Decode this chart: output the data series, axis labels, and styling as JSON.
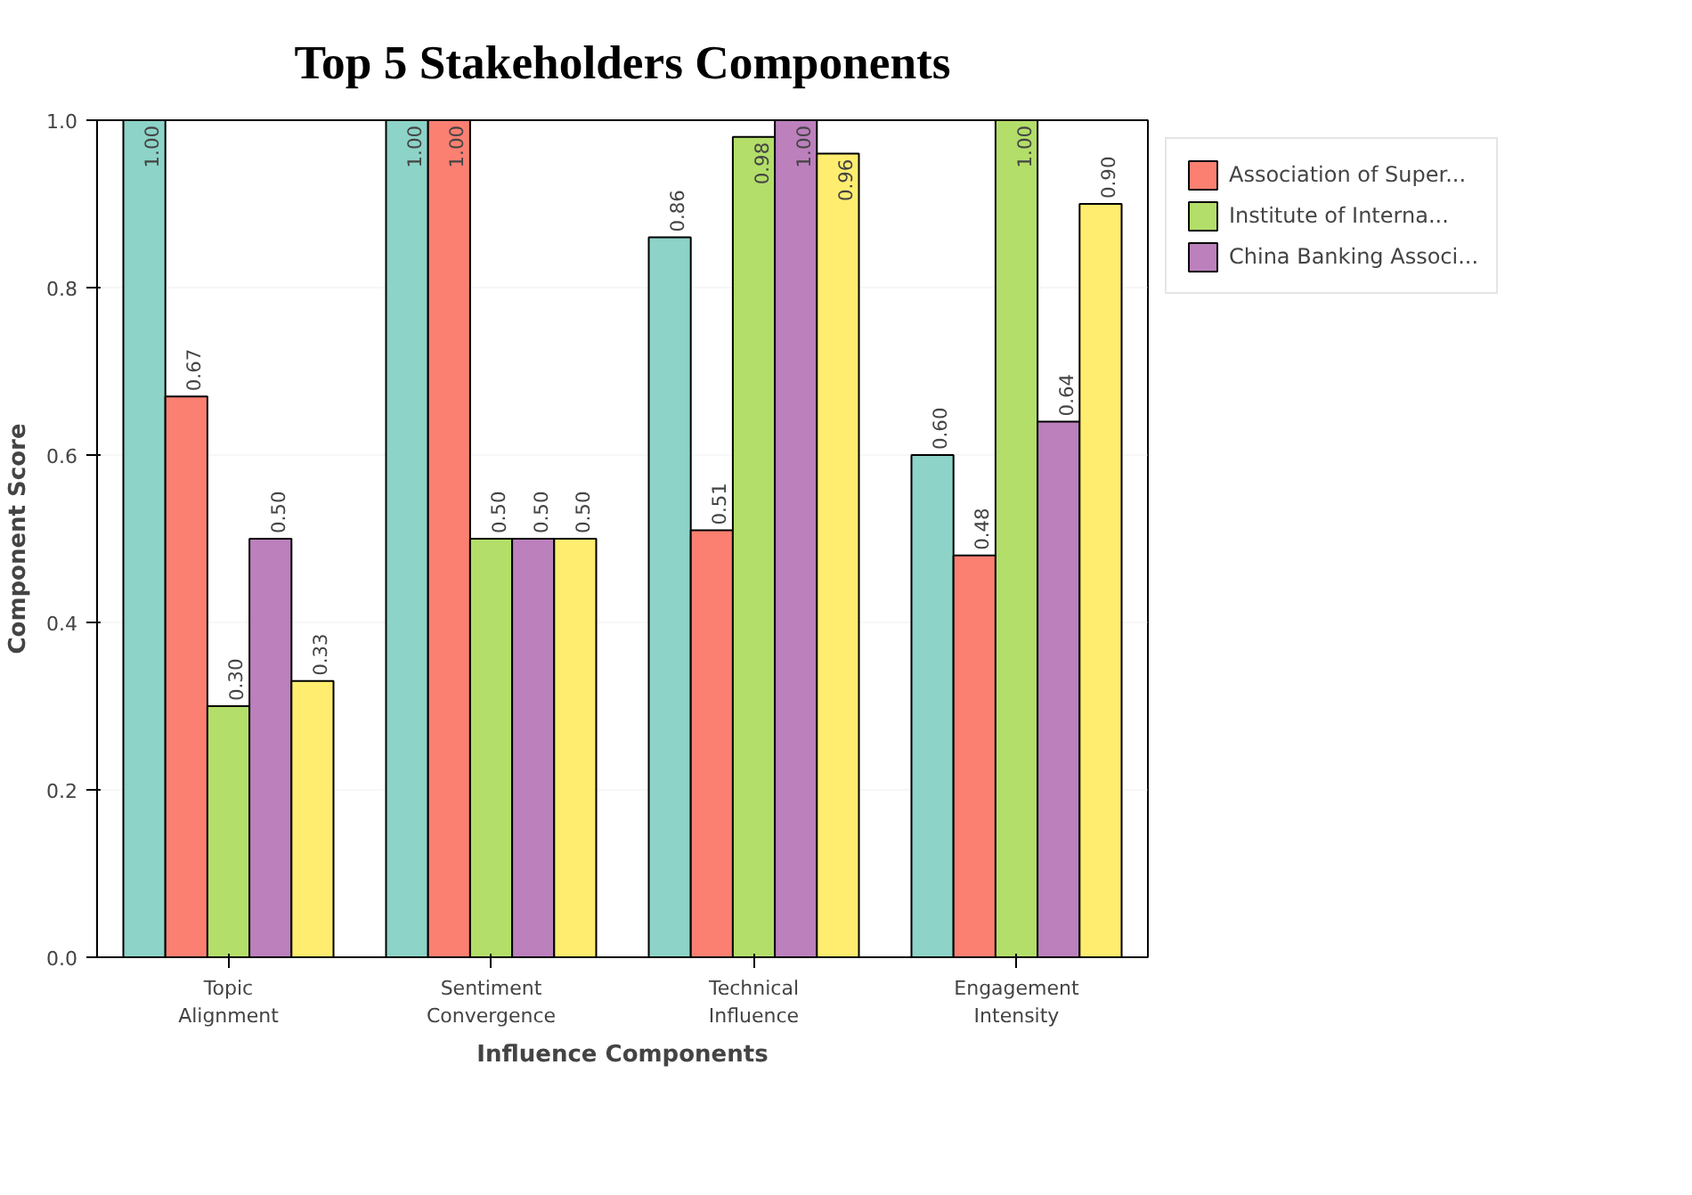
{
  "chart_data": {
    "type": "bar",
    "title": "Top 5 Stakeholders Components",
    "xlabel": "Influence Components",
    "ylabel": "Component Score",
    "categories": [
      "Topic\nAlignment",
      "Sentiment\nConvergence",
      "Technical\nInfluence",
      "Engagement\nIntensity"
    ],
    "series": [
      {
        "color": "#8dd3c7",
        "values": [
          1.0,
          1.0,
          0.86,
          0.6
        ],
        "value_labels": [
          "1.00",
          "1.00",
          "0.86",
          "0.60"
        ]
      },
      {
        "name": "Association of Super...",
        "color": "#fb8072",
        "values": [
          0.67,
          1.0,
          0.51,
          0.48
        ],
        "value_labels": [
          "0.67",
          "1.00",
          "0.51",
          "0.48"
        ]
      },
      {
        "name": "Institute of Interna...",
        "color": "#b3de69",
        "values": [
          0.3,
          0.5,
          0.98,
          1.0
        ],
        "value_labels": [
          "0.30",
          "0.50",
          "0.98",
          "1.00"
        ]
      },
      {
        "name": "China Banking Associ...",
        "color": "#bc80bd",
        "values": [
          0.5,
          0.5,
          1.0,
          0.64
        ],
        "value_labels": [
          "0.50",
          "0.50",
          "1.00",
          "0.64"
        ]
      },
      {
        "color": "#ffed6f",
        "values": [
          0.33,
          0.5,
          0.96,
          0.9
        ],
        "value_labels": [
          "0.33",
          "0.50",
          "0.96",
          "0.90"
        ]
      }
    ],
    "ylim": [
      0,
      1.0
    ],
    "yticks": [
      {
        "value": 0,
        "label": "0.0"
      },
      {
        "value": 0.2,
        "label": "0.2"
      },
      {
        "value": 0.4,
        "label": "0.4"
      },
      {
        "value": 0.6,
        "label": "0.6"
      },
      {
        "value": 0.8,
        "label": "0.8"
      },
      {
        "value": 1.0,
        "label": "1.0"
      }
    ],
    "grid": "y",
    "legend": "top right"
  }
}
